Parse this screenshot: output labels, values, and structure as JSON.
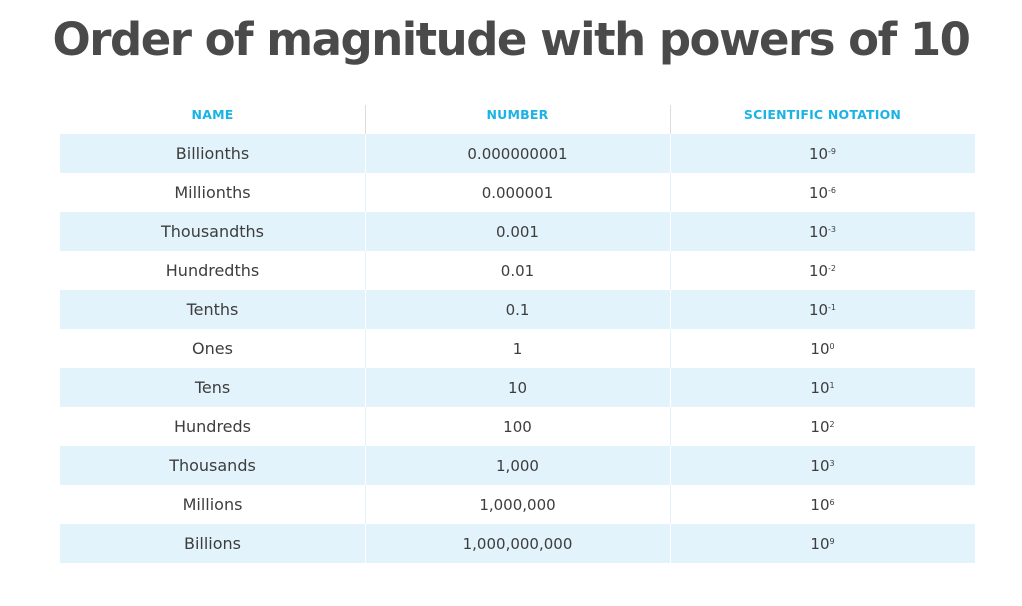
{
  "title": "Order of magnitude with powers of 10",
  "table": {
    "headers": [
      "NAME",
      "NUMBER",
      "SCIENTIFIC NOTATION"
    ],
    "rows": [
      {
        "name": "Billionths",
        "number": "0.000000001",
        "base": "10",
        "exp": "-9"
      },
      {
        "name": "Millionths",
        "number": "0.000001",
        "base": "10",
        "exp": "-6"
      },
      {
        "name": "Thousandths",
        "number": "0.001",
        "base": "10",
        "exp": "-3"
      },
      {
        "name": "Hundredths",
        "number": "0.01",
        "base": "10",
        "exp": "-2"
      },
      {
        "name": "Tenths",
        "number": "0.1",
        "base": "10",
        "exp": "-1"
      },
      {
        "name": "Ones",
        "number": "1",
        "base": "10",
        "exp": "0"
      },
      {
        "name": "Tens",
        "number": "10",
        "base": "10",
        "exp": "1"
      },
      {
        "name": "Hundreds",
        "number": "100",
        "base": "10",
        "exp": "2"
      },
      {
        "name": "Thousands",
        "number": "1,000",
        "base": "10",
        "exp": "3"
      },
      {
        "name": "Millions",
        "number": "1,000,000",
        "base": "10",
        "exp": "6"
      },
      {
        "name": "Billions",
        "number": "1,000,000,000",
        "base": "10",
        "exp": "9"
      }
    ]
  },
  "colors": {
    "header_text": "#1ab3e6",
    "row_shade": "#e2f3fb",
    "title_text": "#4a4a4a",
    "body_text": "#3d3d3d"
  }
}
